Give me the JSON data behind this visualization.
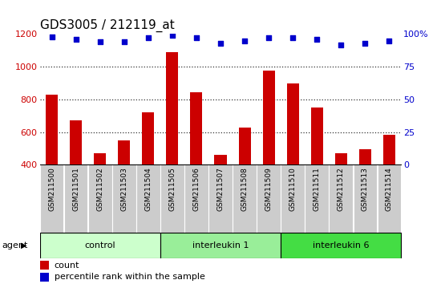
{
  "title": "GDS3005 / 212119_at",
  "samples": [
    "GSM211500",
    "GSM211501",
    "GSM211502",
    "GSM211503",
    "GSM211504",
    "GSM211505",
    "GSM211506",
    "GSM211507",
    "GSM211508",
    "GSM211509",
    "GSM211510",
    "GSM211511",
    "GSM211512",
    "GSM211513",
    "GSM211514"
  ],
  "counts": [
    830,
    670,
    470,
    550,
    720,
    1090,
    845,
    460,
    630,
    975,
    900,
    750,
    470,
    495,
    585
  ],
  "percentiles": [
    98,
    96,
    94,
    94,
    97,
    99,
    97,
    93,
    95,
    97,
    97,
    96,
    92,
    93,
    95
  ],
  "bar_color": "#cc0000",
  "dot_color": "#0000cc",
  "ylim_left": [
    400,
    1200
  ],
  "ylim_right": [
    0,
    100
  ],
  "yticks_left": [
    400,
    600,
    800,
    1000,
    1200
  ],
  "yticks_right": [
    0,
    25,
    50,
    75,
    100
  ],
  "groups": [
    {
      "label": "control",
      "start": 0,
      "end": 5,
      "color": "#ccffcc"
    },
    {
      "label": "interleukin 1",
      "start": 5,
      "end": 10,
      "color": "#99ee99"
    },
    {
      "label": "interleukin 6",
      "start": 10,
      "end": 15,
      "color": "#44dd44"
    }
  ],
  "group_row_label": "agent",
  "legend_count_label": "count",
  "legend_pct_label": "percentile rank within the sample",
  "background_color": "#ffffff",
  "tick_label_bg": "#cccccc",
  "group_border_color": "#000000",
  "dotted_line_color": "#333333",
  "title_fontsize": 11,
  "axis_fontsize": 8,
  "tick_fontsize": 7,
  "sample_fontsize": 6.5,
  "legend_fontsize": 8
}
